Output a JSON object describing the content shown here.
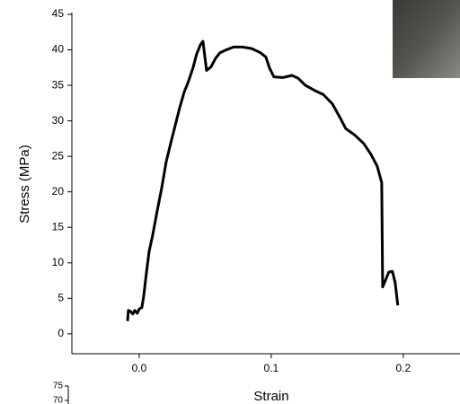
{
  "chart_data": [
    {
      "type": "line",
      "x_label": "Strain",
      "y_label": "Stress (MPa)",
      "color": "#000000",
      "x": [
        -0.0088,
        -0.0082,
        -0.0068,
        -0.0048,
        -0.0034,
        -0.0014,
        0.0,
        0.002,
        0.0034,
        0.0054,
        0.0075,
        0.0102,
        0.0136,
        0.017,
        0.0204,
        0.0238,
        0.0272,
        0.0306,
        0.034,
        0.0374,
        0.0408,
        0.0435,
        0.0463,
        0.0483,
        0.0497,
        0.051,
        0.0544,
        0.0578,
        0.0612,
        0.066,
        0.0714,
        0.0782,
        0.085,
        0.0918,
        0.0959,
        0.0986,
        0.102,
        0.109,
        0.1156,
        0.1204,
        0.1259,
        0.1327,
        0.1395,
        0.1463,
        0.1517,
        0.1565,
        0.1633,
        0.1701,
        0.1755,
        0.1803,
        0.1837,
        0.1844,
        0.1871,
        0.1891,
        0.1918,
        0.1939,
        0.1959
      ],
      "values": [
        1.8,
        3.3,
        3.2,
        2.8,
        3.3,
        2.9,
        3.5,
        3.7,
        5.3,
        8.5,
        11.6,
        13.9,
        17.3,
        20.5,
        24.2,
        26.8,
        29.3,
        31.8,
        34.0,
        35.6,
        37.5,
        39.4,
        40.7,
        41.2,
        39.1,
        37.1,
        37.6,
        38.8,
        39.6,
        40.0,
        40.4,
        40.4,
        40.2,
        39.6,
        39.0,
        37.5,
        36.2,
        36.1,
        36.4,
        36.0,
        35.0,
        34.3,
        33.7,
        32.4,
        30.6,
        28.9,
        28.0,
        26.8,
        25.3,
        23.6,
        21.3,
        6.6,
        7.8,
        8.7,
        8.8,
        7.2,
        4.0
      ],
      "xlim": [
        -0.051,
        0.243
      ],
      "ylim": [
        -2.8,
        45
      ],
      "xticks": [
        {
          "value": 0,
          "label": "0.0"
        },
        0.1,
        0.2
      ],
      "yticks": [
        0,
        5,
        10,
        15,
        20,
        25,
        30,
        35,
        40,
        45
      ]
    },
    {
      "type": "line",
      "ylim": [
        60,
        75
      ],
      "yticks": [
        70,
        75
      ]
    }
  ]
}
